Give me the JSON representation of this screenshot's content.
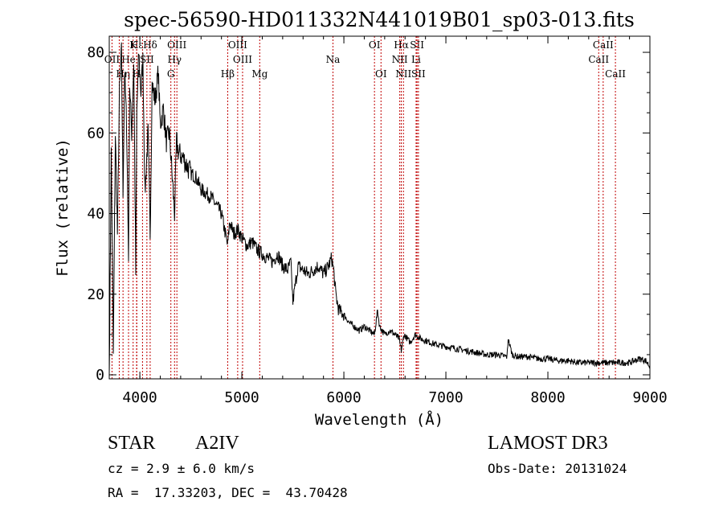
{
  "chart_data": {
    "type": "line",
    "title": "spec-56590-HD011332N441019B01_sp03-013.fits",
    "xlabel": "Wavelength (Å)",
    "ylabel": "Flux (relative)",
    "xlim": [
      3700,
      9000
    ],
    "ylim": [
      -1,
      84
    ],
    "x_ticks": [
      4000,
      5000,
      6000,
      7000,
      8000,
      9000
    ],
    "y_ticks": [
      0,
      20,
      40,
      60,
      80
    ],
    "grid": false,
    "series": [
      {
        "name": "spectrum",
        "x": [
          3700,
          3720,
          3740,
          3760,
          3780,
          3800,
          3820,
          3835,
          3850,
          3870,
          3889,
          3900,
          3920,
          3940,
          3960,
          3970,
          3990,
          4010,
          4030,
          4050,
          4080,
          4101,
          4120,
          4150,
          4180,
          4200,
          4230,
          4260,
          4290,
          4310,
          4340,
          4360,
          4380,
          4420,
          4460,
          4500,
          4550,
          4600,
          4650,
          4700,
          4750,
          4800,
          4830,
          4861,
          4880,
          4920,
          4960,
          5000,
          5050,
          5100,
          5150,
          5200,
          5250,
          5300,
          5350,
          5400,
          5450,
          5480,
          5500,
          5550,
          5600,
          5650,
          5700,
          5750,
          5800,
          5850,
          5880,
          5900,
          5920,
          5950,
          6000,
          6050,
          6100,
          6150,
          6200,
          6250,
          6300,
          6330,
          6350,
          6400,
          6450,
          6500,
          6540,
          6563,
          6590,
          6620,
          6650,
          6700,
          6750,
          6800,
          6850,
          6900,
          7000,
          7100,
          7200,
          7300,
          7400,
          7500,
          7600,
          7610,
          7650,
          7700,
          7800,
          7900,
          8000,
          8100,
          8200,
          8300,
          8400,
          8500,
          8600,
          8700,
          8800,
          8900,
          8960,
          9000
        ],
        "y": [
          0,
          55,
          5,
          60,
          35,
          70,
          80,
          45,
          75,
          62,
          30,
          72,
          60,
          78,
          25,
          65,
          80,
          70,
          78,
          45,
          60,
          35,
          72,
          68,
          75,
          62,
          66,
          58,
          60,
          52,
          40,
          58,
          55,
          54,
          52,
          50,
          49,
          46,
          45,
          44,
          42,
          40,
          36,
          32,
          38,
          35,
          36,
          34,
          32,
          33,
          31,
          30,
          29,
          28,
          30,
          27,
          26,
          28,
          18,
          27,
          26,
          25,
          26,
          27,
          25,
          27,
          29,
          26,
          20,
          16,
          15,
          13,
          12,
          11,
          12,
          11,
          10,
          16,
          12,
          10,
          11,
          10,
          9,
          6,
          10,
          9,
          8,
          10,
          9,
          8.5,
          8,
          7.5,
          7,
          6.5,
          6,
          5.5,
          5,
          5,
          4.5,
          9,
          5,
          4.5,
          4.5,
          4,
          4,
          3.5,
          3.5,
          3,
          3,
          3,
          3,
          3,
          3,
          4,
          3.5,
          2
        ]
      }
    ],
    "line_markers": [
      {
        "label": "Hε",
        "wl": 3970,
        "row": 0
      },
      {
        "label": "K",
        "wl": 3934,
        "row": 0
      },
      {
        "label": "Hδ",
        "wl": 4101,
        "row": 0
      },
      {
        "label": "OIII",
        "wl": 4363,
        "row": 0
      },
      {
        "label": "OIII",
        "wl": 4959,
        "row": 0
      },
      {
        "label": "OI",
        "wl": 6300,
        "row": 0
      },
      {
        "label": "Hα",
        "wl": 6563,
        "row": 0
      },
      {
        "label": "SII",
        "wl": 6717,
        "row": 0
      },
      {
        "label": "CaII",
        "wl": 8542,
        "row": 0
      },
      {
        "label": "OII",
        "wl": 3727,
        "row": 1
      },
      {
        "label": "He",
        "wl": 3889,
        "row": 1
      },
      {
        "label": "SII",
        "wl": 4069,
        "row": 1
      },
      {
        "label": "Hγ",
        "wl": 4340,
        "row": 1
      },
      {
        "label": "OIII",
        "wl": 5007,
        "row": 1
      },
      {
        "label": "Na",
        "wl": 5893,
        "row": 1
      },
      {
        "label": "NII",
        "wl": 6548,
        "row": 1
      },
      {
        "label": "Li",
        "wl": 6708,
        "row": 1
      },
      {
        "label": "CaII",
        "wl": 8498,
        "row": 1
      },
      {
        "label": "Hη",
        "wl": 3835,
        "row": 2
      },
      {
        "label": "H",
        "wl": 3968,
        "row": 2
      },
      {
        "label": "G",
        "wl": 4304,
        "row": 2
      },
      {
        "label": "Hβ",
        "wl": 4861,
        "row": 2
      },
      {
        "label": "Mg",
        "wl": 5175,
        "row": 2
      },
      {
        "label": "OI",
        "wl": 6364,
        "row": 2
      },
      {
        "label": "NII",
        "wl": 6584,
        "row": 2
      },
      {
        "label": "SII",
        "wl": 6731,
        "row": 2
      },
      {
        "label": "CaII",
        "wl": 8662,
        "row": 2
      }
    ],
    "extra_marker_lines": [
      3798,
      3889,
      4026
    ]
  },
  "info": {
    "object_type": "STAR",
    "subclass": "A2IV",
    "survey": "LAMOST DR3",
    "cz": "cz = 2.9 ± 6.0 km/s",
    "obs_date": "Obs-Date: 20131024",
    "coords": "RA =  17.33203, DEC =  43.70428"
  }
}
